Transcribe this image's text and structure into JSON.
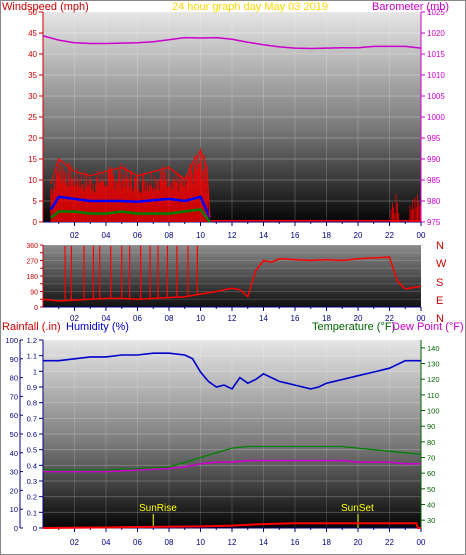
{
  "header": {
    "windspeed_label": "Windspeed (mph)",
    "title": "24 hour graph day  May 03 2019",
    "barometer_label": "Barometer (mb)"
  },
  "direction_labels": [
    "N",
    "W",
    "S",
    "E",
    "N"
  ],
  "bottom_header": {
    "rainfall_label": "Rainfall (.in)",
    "humidity_label": "Humidity (%)",
    "temperature_label": "Temperature (°F)",
    "dewpoint_label": "Dew Point (°F)"
  },
  "sun_events": {
    "sunrise_label": "SunRise",
    "sunset_label": "SunSet"
  },
  "colors": {
    "wind": "#ff0000",
    "gust": "#ff0000",
    "avg_wind": "#0000ff",
    "wind_low": "#008000",
    "barometer": "#cc00cc",
    "direction": "#ff0000",
    "humidity": "#0000cc",
    "temperature": "#008000",
    "dewpoint": "#cc00cc",
    "rain": "#ff0000",
    "windspeed_text": "#cc0000",
    "title_text": "#ffd700",
    "baro_text": "#cc00cc",
    "rain_text": "#cc0000",
    "humidity_text": "#0000cc",
    "temp_text": "#006600",
    "dew_text": "#cc00cc",
    "sun_text": "#ffff00"
  },
  "chart_data": [
    {
      "type": "line",
      "name": "wind-barometer",
      "x_ticks": [
        "02",
        "04",
        "06",
        "08",
        "10",
        "12",
        "14",
        "16",
        "18",
        "20",
        "22",
        "00"
      ],
      "x_range": [
        0,
        24
      ],
      "left_ticks": [
        "0",
        "5",
        "10",
        "15",
        "20",
        "25",
        "30",
        "35",
        "40",
        "45",
        "50"
      ],
      "ylim_left": [
        0,
        50
      ],
      "right_ticks": [
        "975",
        "980",
        "985",
        "990",
        "995",
        "1000",
        "1005",
        "1010",
        "1015",
        "1020",
        "1025"
      ],
      "ylim_right": [
        975,
        1025
      ],
      "barometer": {
        "x": [
          0,
          1,
          2,
          3,
          4,
          5,
          6,
          7,
          8,
          9,
          10,
          11,
          12,
          13,
          14,
          15,
          16,
          17,
          18,
          19,
          20,
          21,
          22,
          23,
          24
        ],
        "y": [
          1019.3,
          1018.3,
          1017.7,
          1017.5,
          1017.5,
          1017.6,
          1017.7,
          1017.9,
          1018.4,
          1018.9,
          1018.8,
          1018.9,
          1018.5,
          1017.8,
          1017.2,
          1016.7,
          1016.4,
          1016.3,
          1016.4,
          1016.5,
          1016.5,
          1016.8,
          1016.8,
          1016.8,
          1016.4
        ]
      },
      "wind_active_ranges": [
        [
          0,
          10.6
        ],
        [
          22.1,
          22.6
        ],
        [
          23.3,
          24
        ]
      ],
      "gust": {
        "x": [
          0.5,
          1,
          2,
          3,
          4,
          5,
          6,
          7,
          8,
          9,
          9.5,
          10,
          10.4,
          10.6
        ],
        "y": [
          9,
          15,
          12,
          11,
          12,
          13,
          11,
          12,
          13,
          10,
          14,
          17,
          13,
          1
        ]
      },
      "avg_wind": {
        "x": [
          0.5,
          1,
          2,
          3,
          4,
          5,
          6,
          7,
          8,
          9,
          10,
          10.6
        ],
        "y": [
          3,
          6,
          5.5,
          5,
          5,
          5,
          4.8,
          5.2,
          5.5,
          5,
          6,
          1
        ]
      },
      "low_wind": {
        "x": [
          0.5,
          1,
          2,
          3,
          4,
          5,
          6,
          7,
          8,
          9,
          10,
          10.6
        ],
        "y": [
          1,
          2.5,
          2.5,
          2,
          2,
          2.5,
          2,
          2,
          2,
          2.5,
          3,
          0
        ]
      }
    },
    {
      "type": "line",
      "name": "wind-direction",
      "x_ticks": [
        "02",
        "04",
        "06",
        "08",
        "10",
        "12",
        "14",
        "16",
        "18",
        "20",
        "22",
        "00"
      ],
      "y_ticks": [
        "0",
        "45",
        "90",
        "135",
        "180",
        "225",
        "270",
        "315",
        "360"
      ],
      "ylim": [
        0,
        360
      ],
      "direction": {
        "x": [
          0,
          1,
          2,
          3,
          4,
          5,
          6,
          7,
          8,
          9,
          10,
          11,
          12,
          12.5,
          13,
          13.5,
          14,
          14.5,
          15,
          16,
          17,
          18,
          19,
          20,
          21,
          22,
          22.5,
          23,
          24
        ],
        "y": [
          45,
          35,
          40,
          45,
          50,
          50,
          45,
          50,
          55,
          60,
          75,
          90,
          110,
          100,
          60,
          210,
          270,
          260,
          280,
          275,
          270,
          275,
          270,
          280,
          285,
          290,
          150,
          105,
          120
        ]
      },
      "spikes_x": [
        1.4,
        1.8,
        2.6,
        3.2,
        3.6,
        4.3,
        5,
        5.5,
        6.2,
        6.8,
        7.3,
        7.9,
        8.5,
        9.2,
        9.8
      ]
    },
    {
      "type": "line",
      "name": "humidity-temperature-rain",
      "x_ticks": [
        "02",
        "04",
        "06",
        "08",
        "10",
        "12",
        "14",
        "16",
        "18",
        "20",
        "22",
        "00"
      ],
      "left_ticks": [
        "0",
        "10",
        "20",
        "30",
        "40",
        "50",
        "60",
        "70",
        "80",
        "90",
        "100"
      ],
      "ylim_humidity": [
        0,
        100
      ],
      "rain_ticks": [
        "0",
        "0.1",
        "0.2",
        "0.3",
        "0.4",
        "0.5",
        "0.6",
        "0.7",
        "0.8",
        "0.9",
        "1",
        "1.1",
        "1.2"
      ],
      "ylim_rain": [
        0,
        1.2
      ],
      "right_ticks": [
        "30",
        "40",
        "50",
        "60",
        "70",
        "80",
        "90",
        "100",
        "110",
        "120",
        "130",
        "140"
      ],
      "ylim_temp": [
        25,
        145
      ],
      "humidity": {
        "x": [
          0,
          1,
          2,
          3,
          4,
          5,
          6,
          7,
          8,
          9,
          9.5,
          10,
          10.5,
          11,
          11.5,
          12,
          12.5,
          13,
          13.5,
          14,
          14.5,
          15,
          15.5,
          16,
          16.5,
          17,
          17.5,
          18,
          19,
          20,
          21,
          22,
          23,
          24
        ],
        "y": [
          89,
          89,
          90,
          91,
          91,
          92,
          92,
          93,
          93,
          92,
          90,
          83,
          78,
          75,
          76,
          74,
          80,
          77,
          79,
          82,
          80,
          78,
          77,
          76,
          75,
          74,
          75,
          77,
          79,
          81,
          83,
          85,
          89,
          89
        ]
      },
      "temperature": {
        "x": [
          0,
          2,
          4,
          6,
          8,
          9,
          10,
          11,
          12,
          13,
          14,
          15,
          16,
          17,
          18,
          19,
          20,
          21,
          22,
          23,
          24
        ],
        "y": [
          62,
          62,
          62,
          63,
          64,
          67,
          70,
          73,
          76,
          77,
          77,
          77,
          77,
          77,
          77,
          77,
          76,
          75,
          74,
          73,
          72
        ]
      },
      "dewpoint": {
        "x": [
          0,
          2,
          4,
          6,
          8,
          9,
          10,
          11,
          12,
          13,
          14,
          15,
          16,
          17,
          18,
          19,
          20,
          21,
          22,
          23,
          24
        ],
        "y": [
          61,
          61,
          61,
          62,
          63,
          64,
          66,
          67,
          67,
          68,
          68,
          68,
          68,
          68,
          68,
          68,
          67,
          67,
          67,
          66,
          66
        ]
      },
      "rain": {
        "x": [
          0,
          5,
          10,
          12,
          14,
          16,
          18,
          20,
          22,
          23.7,
          23.8,
          24
        ],
        "y": [
          0,
          0.005,
          0.01,
          0.015,
          0.025,
          0.03,
          0.03,
          0.03,
          0.03,
          0.03,
          0.0,
          0.0
        ]
      },
      "sunrise_hour": 7,
      "sunset_hour": 20
    }
  ]
}
